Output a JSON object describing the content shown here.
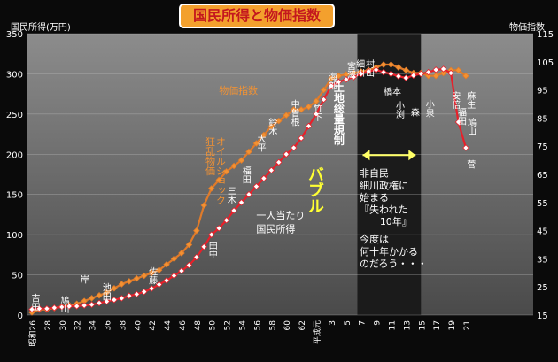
{
  "chart_data": {
    "type": "line",
    "title": "国民所得と物価指数",
    "ylabel_left": "国民所得(万円)",
    "ylabel_right": "物価指数",
    "ylim_left": [
      0,
      350
    ],
    "ylim_right": [
      15,
      115
    ],
    "yticks_left": [
      "0",
      "50",
      "100",
      "150",
      "200",
      "250",
      "300",
      "350"
    ],
    "yticks_right": [
      "15",
      "25",
      "35",
      "45",
      "55",
      "65",
      "75",
      "85",
      "95",
      "105",
      "115"
    ],
    "xlim": [
      0,
      67
    ],
    "x_ticks": [
      {
        "i": 0,
        "label": "昭和26"
      },
      {
        "i": 2,
        "label": "28"
      },
      {
        "i": 4,
        "label": "30"
      },
      {
        "i": 6,
        "label": "32"
      },
      {
        "i": 8,
        "label": "34"
      },
      {
        "i": 10,
        "label": "36"
      },
      {
        "i": 12,
        "label": "38"
      },
      {
        "i": 14,
        "label": "40"
      },
      {
        "i": 16,
        "label": "42"
      },
      {
        "i": 18,
        "label": "44"
      },
      {
        "i": 20,
        "label": "46"
      },
      {
        "i": 22,
        "label": "48"
      },
      {
        "i": 24,
        "label": "50"
      },
      {
        "i": 26,
        "label": "52"
      },
      {
        "i": 28,
        "label": "54"
      },
      {
        "i": 30,
        "label": "56"
      },
      {
        "i": 32,
        "label": "58"
      },
      {
        "i": 34,
        "label": "60"
      },
      {
        "i": 36,
        "label": "62"
      },
      {
        "i": 38,
        "label": "平成元"
      },
      {
        "i": 40,
        "label": "3"
      },
      {
        "i": 42,
        "label": "5"
      },
      {
        "i": 44,
        "label": "7"
      },
      {
        "i": 46,
        "label": "9"
      },
      {
        "i": 48,
        "label": "11"
      },
      {
        "i": 50,
        "label": "13"
      },
      {
        "i": 52,
        "label": "15"
      },
      {
        "i": 54,
        "label": "17"
      },
      {
        "i": 56,
        "label": "19"
      },
      {
        "i": 58,
        "label": "21"
      }
    ],
    "series": [
      {
        "name": "一人当たり国民所得",
        "axis": "left",
        "color": "#e8202a",
        "marker": "#ffffff",
        "x": [
          0,
          1,
          2,
          3,
          4,
          5,
          6,
          7,
          8,
          9,
          10,
          11,
          12,
          13,
          14,
          15,
          16,
          17,
          18,
          19,
          20,
          21,
          22,
          23,
          24,
          25,
          26,
          27,
          28,
          29,
          30,
          31,
          32,
          33,
          34,
          35,
          36,
          37,
          38,
          39,
          40,
          41,
          42,
          43,
          44,
          45,
          46,
          47,
          48,
          49,
          50,
          51,
          52,
          53,
          54,
          55,
          56,
          57,
          58
        ],
        "values": [
          7,
          8,
          8,
          9,
          10,
          11,
          11,
          12,
          13,
          15,
          17,
          19,
          21,
          24,
          26,
          29,
          33,
          38,
          43,
          49,
          55,
          62,
          72,
          85,
          100,
          108,
          118,
          130,
          140,
          150,
          160,
          170,
          180,
          190,
          200,
          208,
          220,
          235,
          250,
          268,
          285,
          290,
          293,
          296,
          300,
          303,
          305,
          302,
          300,
          297,
          295,
          298,
          300,
          302,
          305,
          306,
          301,
          240,
          208
        ]
      },
      {
        "name": "物価指数",
        "axis": "right",
        "color": "#e07b2a",
        "marker": "#f29233",
        "x": [
          0,
          1,
          2,
          3,
          4,
          5,
          6,
          7,
          8,
          9,
          10,
          11,
          12,
          13,
          14,
          15,
          16,
          17,
          18,
          19,
          20,
          21,
          22,
          23,
          24,
          25,
          26,
          27,
          28,
          29,
          30,
          31,
          32,
          33,
          34,
          35,
          36,
          37,
          38,
          39,
          40,
          41,
          42,
          43,
          44,
          45,
          46,
          47,
          48,
          49,
          50,
          51,
          52,
          53,
          54,
          55,
          56,
          57,
          58
        ],
        "values": [
          16,
          17,
          17,
          17.5,
          18,
          18.5,
          19,
          20,
          21,
          22,
          23,
          24.5,
          26,
          27,
          28,
          29,
          30,
          31,
          33,
          35,
          37,
          40,
          45,
          54,
          60,
          63,
          66,
          68,
          70,
          73,
          76,
          79,
          82,
          84,
          86,
          88,
          88,
          89,
          91,
          95,
          99,
          100,
          100.5,
          101,
          101.5,
          102,
          103,
          104,
          104,
          103,
          102,
          101,
          101,
          100,
          100,
          101,
          102,
          102,
          100
        ]
      }
    ],
    "shaded_region": {
      "from": 43.5,
      "to": 52
    },
    "annotations": [
      {
        "text": "吉田",
        "x": 0.3,
        "y": 27
      },
      {
        "text": "鳩山",
        "x": 4.2,
        "y": 24
      },
      {
        "text": "岸",
        "x": 6.5,
        "y": 40
      },
      {
        "text": "池田",
        "x": 9.8,
        "y": 40
      },
      {
        "text": "佐藤",
        "x": 16,
        "y": 60
      },
      {
        "text": "田中",
        "x": 24,
        "y": 92
      },
      {
        "text": "三木",
        "x": 26.5,
        "y": 160
      },
      {
        "text": "福田",
        "x": 28.5,
        "y": 185
      },
      {
        "text": "大平",
        "x": 30.5,
        "y": 225
      },
      {
        "text": "鈴木",
        "x": 32,
        "y": 245
      },
      {
        "text": "中曽根",
        "x": 35,
        "y": 268
      },
      {
        "text": "竹下",
        "x": 38,
        "y": 263
      },
      {
        "text": "海部",
        "x": 40,
        "y": 302
      },
      {
        "text": "宮澤",
        "x": 42.5,
        "y": 315
      },
      {
        "text": "細川",
        "x": 43.7,
        "y": 318
      },
      {
        "text": "村山",
        "x": 45,
        "y": 318
      },
      {
        "text": "橋本",
        "x": 47,
        "y": 274
      },
      {
        "text": "小渕",
        "x": 49,
        "y": 266
      },
      {
        "text": "森",
        "x": 51,
        "y": 258
      },
      {
        "text": "小泉",
        "x": 53,
        "y": 268
      },
      {
        "text": "安倍",
        "x": 56.5,
        "y": 278
      },
      {
        "text": "福田",
        "x": 57.3,
        "y": 258
      },
      {
        "text": "麻生",
        "x": 58.5,
        "y": 278
      },
      {
        "text": "鳩山",
        "x": 58.6,
        "y": 245
      },
      {
        "text": "菅",
        "x": 58.5,
        "y": 193
      },
      {
        "text": "物価指数",
        "x": 25,
        "y": 275
      },
      {
        "text": "狂乱物価",
        "x": 23.8,
        "y": 222
      },
      {
        "text": "オイルショック",
        "x": 25.2,
        "y": 222
      },
      {
        "text": "一人当たり",
        "x": 30,
        "y": 120
      },
      {
        "text": "国民所得",
        "x": 30,
        "y": 103
      },
      {
        "text": "土地総量規制",
        "x": 41,
        "y": 290
      },
      {
        "text": "バブル",
        "x": 37.8,
        "y": 185
      },
      {
        "text": "非自民",
        "x": 43.8,
        "y": 172
      },
      {
        "text": "細川政権に",
        "x": 43.8,
        "y": 157
      },
      {
        "text": "始まる",
        "x": 43.8,
        "y": 142
      },
      {
        "text": "『失われた",
        "x": 43.8,
        "y": 127
      },
      {
        "text": "10年』",
        "x": 46.5,
        "y": 112
      },
      {
        "text": "今度は",
        "x": 43.8,
        "y": 90
      },
      {
        "text": "何十年かかる",
        "x": 43.8,
        "y": 75
      },
      {
        "text": "のだろう・・・",
        "x": 43.8,
        "y": 60
      }
    ]
  }
}
